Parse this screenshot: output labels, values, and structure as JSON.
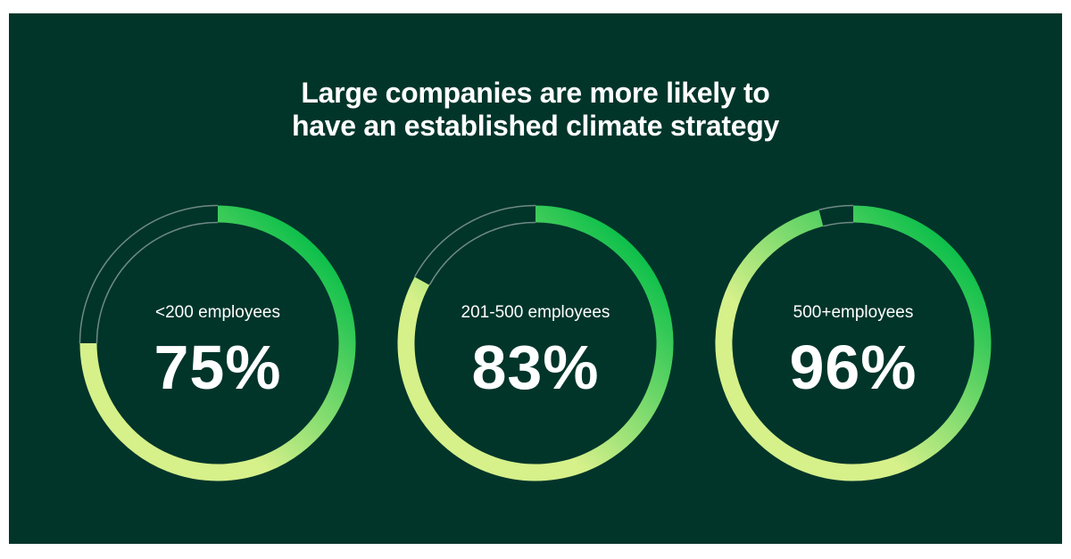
{
  "chart_data": {
    "type": "donut",
    "title": [
      "Large companies are more likely to",
      "have an established climate strategy"
    ],
    "categories": [
      "<200 employees",
      "201-500 employees",
      "500+employees"
    ],
    "values": [
      75,
      83,
      96
    ],
    "value_labels": [
      "75%",
      "83%",
      "96%"
    ],
    "unit": "%",
    "max": 100
  },
  "colors": {
    "background": "#01352a",
    "gradient_start": "#0cbf4a",
    "gradient_end": "#d6f08a",
    "track": "#6f8a82",
    "text": "#ffffff"
  }
}
